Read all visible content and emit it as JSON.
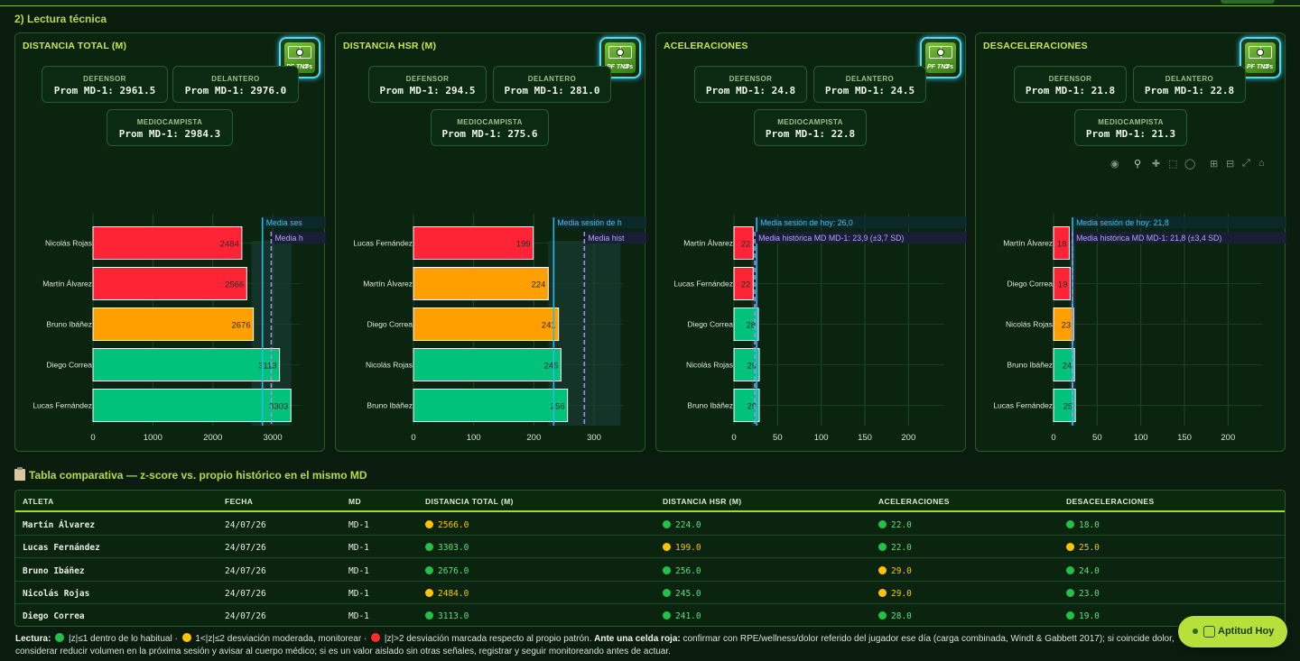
{
  "section_title": "2) Lectura técnica",
  "panels": [
    {
      "title": "DISTANCIA TOTAL (M)",
      "logo_text": "PF TNT",
      "logo_sub": "GPS",
      "cards": [
        {
          "label": "DEFENSOR",
          "value": "Prom MD-1: 2961.5"
        },
        {
          "label": "DELANTERO",
          "value": "Prom MD-1: 2976.0"
        },
        {
          "label": "MEDIOCAMPISTA",
          "value": "Prom MD-1: 2984.3"
        }
      ]
    },
    {
      "title": "DISTANCIA HSR (M)",
      "logo_text": "PF TNT",
      "logo_sub": "GPS",
      "cards": [
        {
          "label": "DEFENSOR",
          "value": "Prom MD-1: 294.5"
        },
        {
          "label": "DELANTERO",
          "value": "Prom MD-1: 281.0"
        },
        {
          "label": "MEDIOCAMPISTA",
          "value": "Prom MD-1: 275.6"
        }
      ]
    },
    {
      "title": "ACELERACIONES",
      "logo_text": "PF TNT",
      "logo_sub": "GPS",
      "cards": [
        {
          "label": "DEFENSOR",
          "value": "Prom MD-1: 24.8"
        },
        {
          "label": "DELANTERO",
          "value": "Prom MD-1: 24.5"
        },
        {
          "label": "MEDIOCAMPISTA",
          "value": "Prom MD-1: 22.8"
        }
      ]
    },
    {
      "title": "DESACELERACIONES",
      "logo_text": "PF TNT",
      "logo_sub": "GPS",
      "cards": [
        {
          "label": "DEFENSOR",
          "value": "Prom MD-1: 21.8"
        },
        {
          "label": "DELANTERO",
          "value": "Prom MD-1: 22.8"
        },
        {
          "label": "MEDIOCAMPISTA",
          "value": "Prom MD-1: 21.3"
        }
      ]
    }
  ],
  "modebar": [
    "camera-icon",
    "zoom-icon",
    "pan-icon",
    "box-select-icon",
    "lasso-icon",
    "zoom-in-icon",
    "zoom-out-icon",
    "autoscale-icon",
    "home-icon"
  ],
  "colors": {
    "red": "#ff2435",
    "orange": "#ffa000",
    "green": "#00c27a",
    "today_line": "#2ab8e8",
    "hist_line": "#a98cf0",
    "accent": "#b8dc3a"
  },
  "chart_data": [
    {
      "type": "bar",
      "orientation": "horizontal",
      "categories": [
        "Nicolás Rojas",
        "Martín Álvarez",
        "Bruno Ibáñez",
        "Diego Correa",
        "Lucas Fernández"
      ],
      "values": [
        2484,
        2566,
        2676,
        3113,
        3303
      ],
      "value_labels": [
        "2484",
        "2566",
        "2676",
        "3113",
        "3303"
      ],
      "bar_colors": [
        "red",
        "red",
        "orange",
        "green",
        "green"
      ],
      "xlim": [
        0,
        3450
      ],
      "xticks": [
        0,
        1000,
        2000,
        3000
      ],
      "today_mean": 2828,
      "hist_mean": 2975,
      "hist_sd": 330,
      "legend": [
        "Media ses",
        "Media h"
      ]
    },
    {
      "type": "bar",
      "orientation": "horizontal",
      "categories": [
        "Lucas Fernández",
        "Martín Álvarez",
        "Diego Correa",
        "Nicolás Rojas",
        "Bruno Ibáñez"
      ],
      "values": [
        199,
        224,
        241,
        245,
        256
      ],
      "value_labels": [
        "199",
        "224",
        "241",
        "245",
        "256"
      ],
      "bar_colors": [
        "red",
        "orange",
        "orange",
        "green",
        "green"
      ],
      "xlim": [
        0,
        348
      ],
      "xticks": [
        0,
        100,
        200,
        300
      ],
      "today_mean": 233,
      "hist_mean": 284,
      "hist_sd": 60,
      "legend": [
        "Media sesión de h",
        "Media hist"
      ]
    },
    {
      "type": "bar",
      "orientation": "horizontal",
      "categories": [
        "Martín Álvarez",
        "Lucas Fernández",
        "Diego Correa",
        "Nicolás Rojas",
        "Bruno Ibáñez"
      ],
      "values": [
        22,
        22,
        28,
        29,
        29
      ],
      "value_labels": [
        "22",
        "22",
        "28",
        "29",
        "29"
      ],
      "bar_colors": [
        "red",
        "red",
        "green",
        "green",
        "green"
      ],
      "xlim": [
        0,
        240
      ],
      "xticks": [
        0,
        50,
        100,
        150,
        200
      ],
      "today_mean": 26.0,
      "hist_mean": 23.9,
      "hist_sd": 3.7,
      "legend": [
        "Media sesión de hoy: 26,0",
        "Media histórica MD MD-1: 23,9 (±3,7 SD)"
      ]
    },
    {
      "type": "bar",
      "orientation": "horizontal",
      "categories": [
        "Martín Álvarez",
        "Diego Correa",
        "Nicolás Rojas",
        "Bruno Ibáñez",
        "Lucas Fernández"
      ],
      "values": [
        18,
        19,
        23,
        24,
        25
      ],
      "value_labels": [
        "18",
        "19",
        "23",
        "24",
        "25"
      ],
      "bar_colors": [
        "red",
        "red",
        "orange",
        "green",
        "green"
      ],
      "xlim": [
        0,
        240
      ],
      "xticks": [
        0,
        50,
        100,
        150,
        200
      ],
      "today_mean": 21.8,
      "hist_mean": 21.8,
      "hist_sd": 3.4,
      "legend": [
        "Media sesión de hoy: 21,8",
        "Media histórica MD MD-1: 21,8 (±3,4 SD)"
      ]
    }
  ],
  "table": {
    "title": "Tabla comparativa — z-score vs. propio histórico en el mismo MD",
    "columns": [
      "ATLETA",
      "FECHA",
      "MD",
      "DISTANCIA TOTAL (M)",
      "DISTANCIA HSR (M)",
      "ACELERACIONES",
      "DESACELERACIONES"
    ],
    "rows": [
      {
        "athlete": "Martín Álvarez",
        "date": "24/07/26",
        "md": "MD-1",
        "cells": [
          {
            "v": "2566.0",
            "s": "yellow"
          },
          {
            "v": "224.0",
            "s": "green"
          },
          {
            "v": "22.0",
            "s": "green"
          },
          {
            "v": "18.0",
            "s": "green"
          }
        ]
      },
      {
        "athlete": "Lucas Fernández",
        "date": "24/07/26",
        "md": "MD-1",
        "cells": [
          {
            "v": "3303.0",
            "s": "green"
          },
          {
            "v": "199.0",
            "s": "yellow"
          },
          {
            "v": "22.0",
            "s": "green"
          },
          {
            "v": "25.0",
            "s": "yellow"
          }
        ]
      },
      {
        "athlete": "Bruno Ibáñez",
        "date": "24/07/26",
        "md": "MD-1",
        "cells": [
          {
            "v": "2676.0",
            "s": "green"
          },
          {
            "v": "256.0",
            "s": "green"
          },
          {
            "v": "29.0",
            "s": "yellow"
          },
          {
            "v": "24.0",
            "s": "green"
          }
        ]
      },
      {
        "athlete": "Nicolás Rojas",
        "date": "24/07/26",
        "md": "MD-1",
        "cells": [
          {
            "v": "2484.0",
            "s": "yellow"
          },
          {
            "v": "245.0",
            "s": "green"
          },
          {
            "v": "29.0",
            "s": "yellow"
          },
          {
            "v": "23.0",
            "s": "green"
          }
        ]
      },
      {
        "athlete": "Diego Correa",
        "date": "24/07/26",
        "md": "MD-1",
        "cells": [
          {
            "v": "3113.0",
            "s": "green"
          },
          {
            "v": "241.0",
            "s": "green"
          },
          {
            "v": "28.0",
            "s": "green"
          },
          {
            "v": "19.0",
            "s": "green"
          }
        ]
      }
    ],
    "status_colors": {
      "green": "#22c24a",
      "yellow": "#ffc400",
      "red": "#ff2a2a"
    },
    "value_colors": {
      "green": "#5ee07a",
      "yellow": "#ffc400"
    }
  },
  "footer": {
    "lead": "Lectura:",
    "t1": " |z|≤1 dentro de lo habitual · ",
    "t2": " 1<|z|≤2 desviación moderada, monitorear · ",
    "t3": " |z|>2 desviación marcada respecto al propio patrón. ",
    "bold": "Ante una celda roja:",
    "t4": " confirmar con RPE/wellness/dolor referido del jugador ese día (carga combinada, Windt & Gabbett 2017); si coincide dolor, considerar reducir volumen en la próxima sesión y avisar al cuerpo médico; si es un valor aislado sin otras señales, registrar y seguir monitoreando antes de actuar."
  },
  "fab": {
    "label": "Aptitud Hoy"
  }
}
